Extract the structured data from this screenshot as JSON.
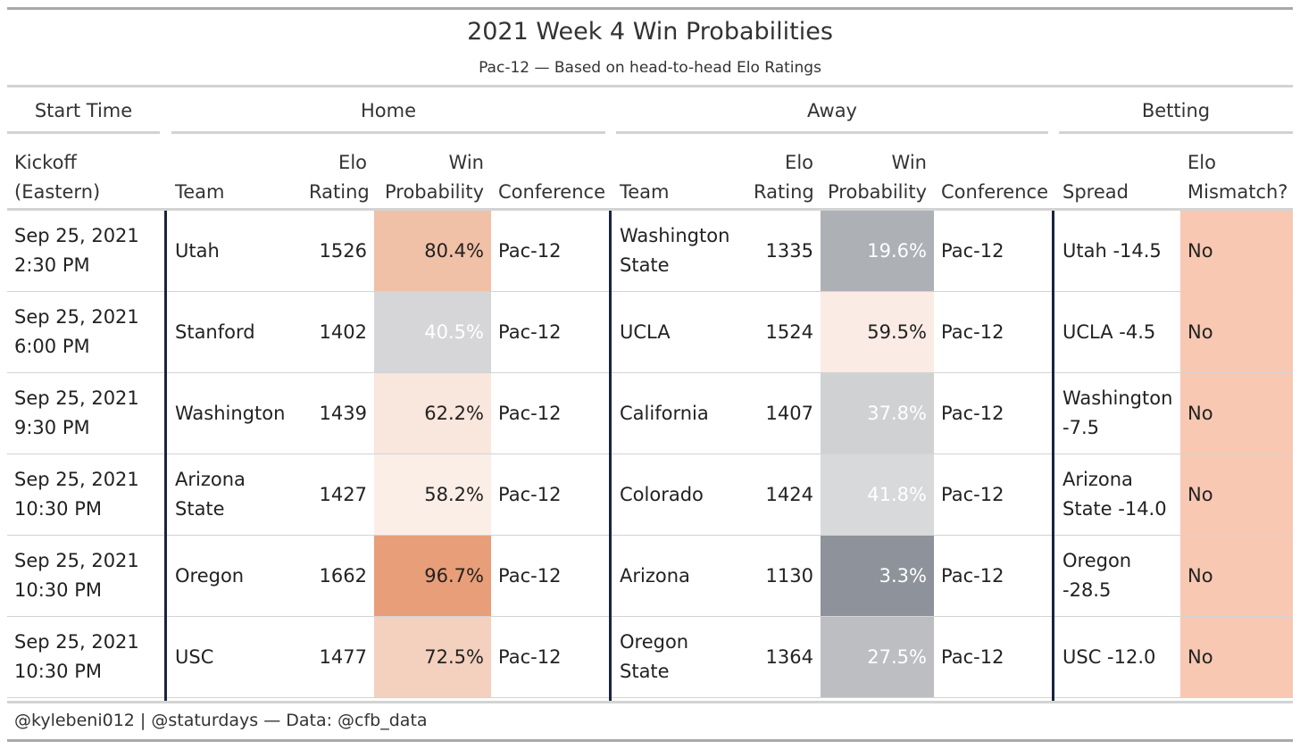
{
  "title": "2021 Week 4 Win Probabilities",
  "subtitle": "Pac-12 — Based on head-to-head Elo Ratings",
  "spanners": {
    "start_time": "Start Time",
    "home": "Home",
    "away": "Away",
    "betting": "Betting"
  },
  "columns": {
    "kickoff": [
      "Kickoff",
      "(Eastern)"
    ],
    "home_team": "Team",
    "home_elo": [
      "Elo",
      "Rating"
    ],
    "home_win": [
      "Win",
      "Probability"
    ],
    "home_conf": "Conference",
    "away_team": "Team",
    "away_elo": [
      "Elo",
      "Rating"
    ],
    "away_win": [
      "Win",
      "Probability"
    ],
    "away_conf": "Conference",
    "spread": "Spread",
    "mismatch": [
      "Elo",
      "Mismatch?"
    ]
  },
  "colors": {
    "orange": "#e89d77",
    "grey": "#8d9199",
    "neutral": "#e8e8e8",
    "mismatch_bg": "#f8c8b2",
    "divider": "#1a2340"
  },
  "chart_data": {
    "type": "table",
    "rows": [
      {
        "kickoff": [
          "Sep 25, 2021",
          "2:30 PM"
        ],
        "home_team": [
          "Utah"
        ],
        "home_elo": "1526",
        "home_win": "80.4%",
        "home_win_value": 80.4,
        "home_conf": "Pac-12",
        "away_team": [
          "Washington",
          "State"
        ],
        "away_elo": "1335",
        "away_win": "19.6%",
        "away_win_value": 19.6,
        "away_conf": "Pac-12",
        "spread": [
          "Utah -14.5"
        ],
        "mismatch": "No"
      },
      {
        "kickoff": [
          "Sep 25, 2021",
          "6:00 PM"
        ],
        "home_team": [
          "Stanford"
        ],
        "home_elo": "1402",
        "home_win": "40.5%",
        "home_win_value": 40.5,
        "home_conf": "Pac-12",
        "away_team": [
          "UCLA"
        ],
        "away_elo": "1524",
        "away_win": "59.5%",
        "away_win_value": 59.5,
        "away_conf": "Pac-12",
        "spread": [
          "UCLA -4.5"
        ],
        "mismatch": "No"
      },
      {
        "kickoff": [
          "Sep 25, 2021",
          "9:30 PM"
        ],
        "home_team": [
          "Washington"
        ],
        "home_elo": "1439",
        "home_win": "62.2%",
        "home_win_value": 62.2,
        "home_conf": "Pac-12",
        "away_team": [
          "California"
        ],
        "away_elo": "1407",
        "away_win": "37.8%",
        "away_win_value": 37.8,
        "away_conf": "Pac-12",
        "spread": [
          "Washington",
          "-7.5"
        ],
        "mismatch": "No"
      },
      {
        "kickoff": [
          "Sep 25, 2021",
          "10:30 PM"
        ],
        "home_team": [
          "Arizona",
          "State"
        ],
        "home_elo": "1427",
        "home_win": "58.2%",
        "home_win_value": 58.2,
        "home_conf": "Pac-12",
        "away_team": [
          "Colorado"
        ],
        "away_elo": "1424",
        "away_win": "41.8%",
        "away_win_value": 41.8,
        "away_conf": "Pac-12",
        "spread": [
          "Arizona",
          "State -14.0"
        ],
        "mismatch": "No"
      },
      {
        "kickoff": [
          "Sep 25, 2021",
          "10:30 PM"
        ],
        "home_team": [
          "Oregon"
        ],
        "home_elo": "1662",
        "home_win": "96.7%",
        "home_win_value": 96.7,
        "home_conf": "Pac-12",
        "away_team": [
          "Arizona"
        ],
        "away_elo": "1130",
        "away_win": "3.3%",
        "away_win_value": 3.3,
        "away_conf": "Pac-12",
        "spread": [
          "Oregon",
          "-28.5"
        ],
        "mismatch": "No"
      },
      {
        "kickoff": [
          "Sep 25, 2021",
          "10:30 PM"
        ],
        "home_team": [
          "USC"
        ],
        "home_elo": "1477",
        "home_win": "72.5%",
        "home_win_value": 72.5,
        "home_conf": "Pac-12",
        "away_team": [
          "Oregon",
          "State"
        ],
        "away_elo": "1364",
        "away_win": "27.5%",
        "away_win_value": 27.5,
        "away_conf": "Pac-12",
        "spread": [
          "USC -12.0"
        ],
        "mismatch": "No"
      }
    ]
  },
  "footer": "@kylebeni012 | @staturdays — Data: @cfb_data"
}
